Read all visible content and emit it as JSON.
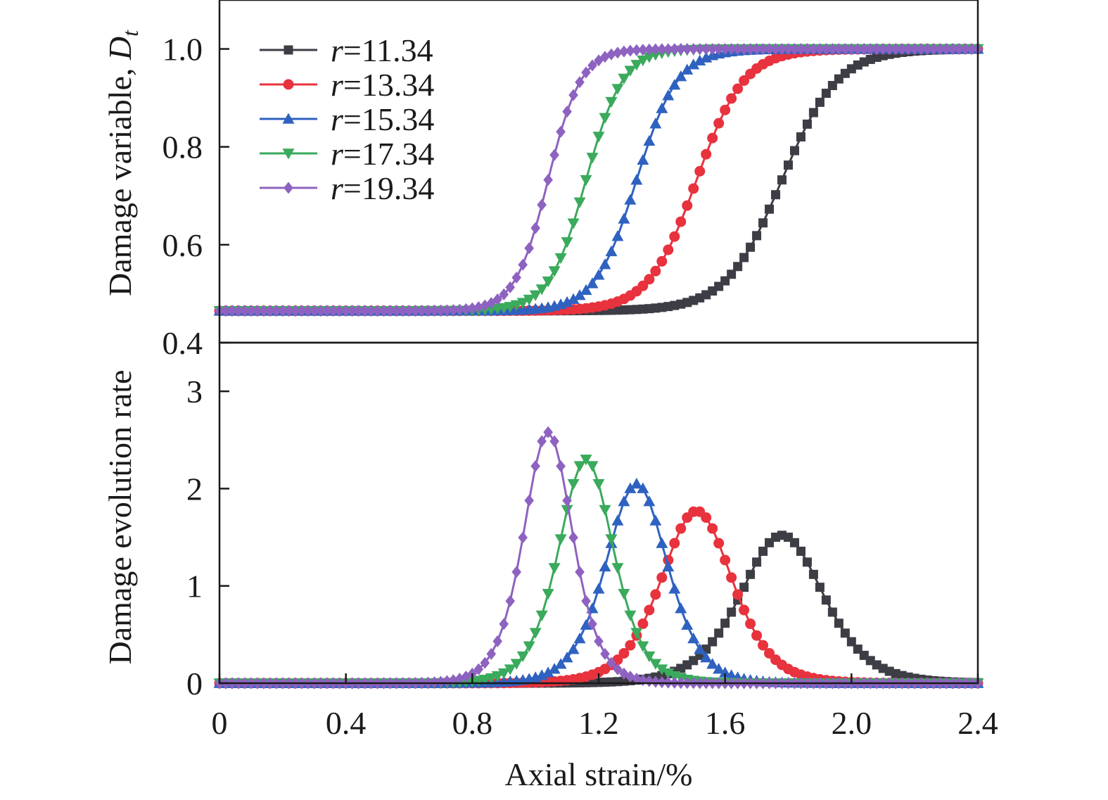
{
  "chart_data": {
    "type": "line",
    "xlabel": "Axial strain/%",
    "xlim": [
      0,
      2.4
    ],
    "x_ticks": [
      "0",
      "0.4",
      "0.8",
      "1.2",
      "1.6",
      "2.0",
      "2.4"
    ],
    "x_step": 0.02,
    "series": [
      {
        "name": "r=11.34",
        "legend_italic": "r",
        "legend_value": "=11.34",
        "color": "#3d3d45",
        "marker": "square",
        "center": 1.78,
        "peak_rate": 1.52
      },
      {
        "name": "r=13.34",
        "legend_italic": "r",
        "legend_value": "=13.34",
        "color": "#e8323e",
        "marker": "circle",
        "center": 1.51,
        "peak_rate": 1.77
      },
      {
        "name": "r=15.34",
        "legend_italic": "r",
        "legend_value": "=15.34",
        "color": "#2f62c0",
        "marker": "triangle-up",
        "center": 1.32,
        "peak_rate": 2.05
      },
      {
        "name": "r=17.34",
        "legend_italic": "r",
        "legend_value": "=17.34",
        "color": "#3aaa5c",
        "marker": "triangle-down",
        "center": 1.16,
        "peak_rate": 2.3
      },
      {
        "name": "r=19.34",
        "legend_italic": "r",
        "legend_value": "=19.34",
        "color": "#8e62c0",
        "marker": "diamond",
        "center": 1.04,
        "peak_rate": 2.58
      }
    ],
    "panels": [
      {
        "id": "damage-variable",
        "ylabel_text": "Damage variable, ",
        "ylabel_symbol": "D",
        "ylabel_subscript": "t",
        "ylim": [
          0.4,
          1.1
        ],
        "y_ticks": [
          {
            "value": 0.4,
            "label": "0.4"
          },
          {
            "value": 0.6,
            "label": "0.6"
          },
          {
            "value": 0.8,
            "label": "0.8"
          },
          {
            "value": 1.0,
            "label": "1.0"
          }
        ],
        "baseline": 0.465,
        "plateau": 1.0
      },
      {
        "id": "damage-evolution-rate",
        "ylabel_text": "Damage evolution rate",
        "ylim": [
          0,
          3.5
        ],
        "y_ticks": [
          {
            "value": 0,
            "label": "0"
          },
          {
            "value": 1,
            "label": "1"
          },
          {
            "value": 2,
            "label": "2"
          },
          {
            "value": 3,
            "label": "3"
          }
        ]
      }
    ],
    "legend_position": "top-left",
    "grid": false
  }
}
